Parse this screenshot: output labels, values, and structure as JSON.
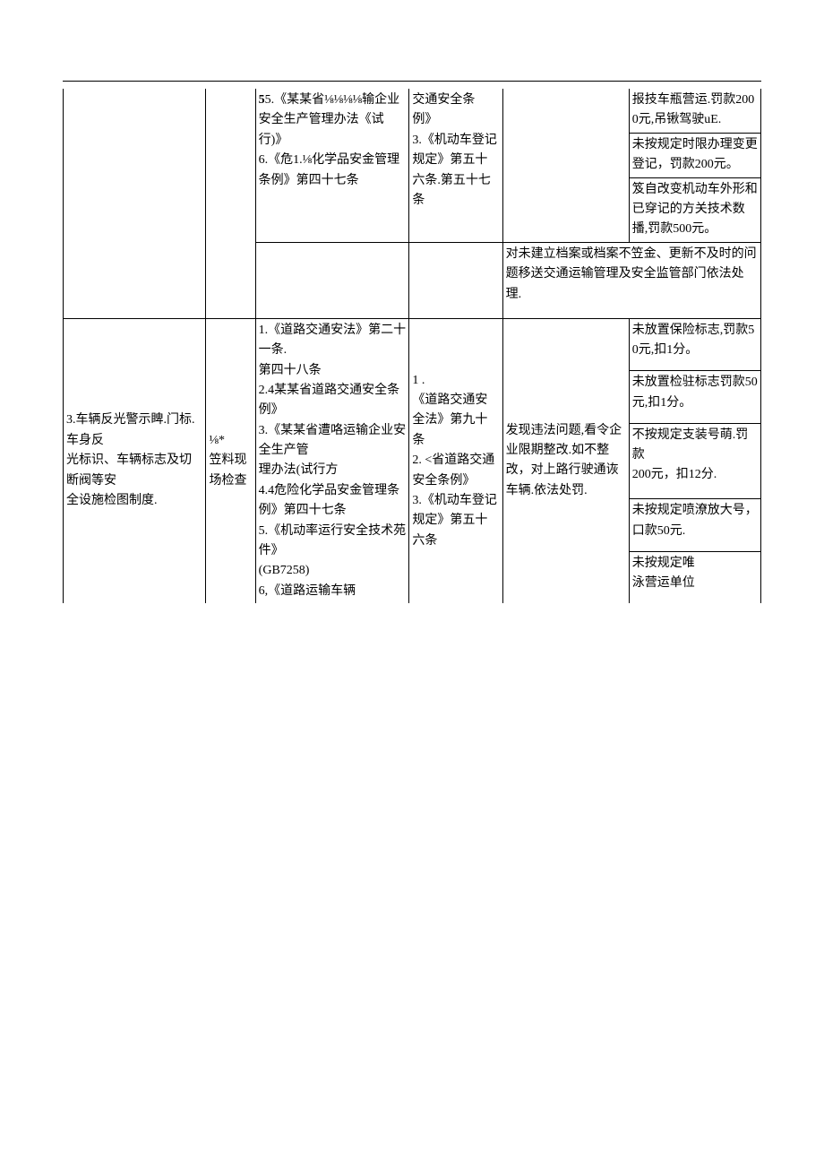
{
  "row1": {
    "c3": "5.《某某省⅛⅛⅛⅛输企业安全生产管理办法《试行)》\n6.《危1.⅛化学品安金管理条例》第四十七条",
    "c4": "交通安全条例》\n3.《机动车登记规定》第五十六条.第五十七条",
    "c6a": "报技车瓶营运.罚款2000元,吊锹驾驶uE.",
    "c6b": "未按规定时限办理变更登记，罚款200元。",
    "c6c": "笈自改变机动车外形和已穿记的方关技术数播,罚款500元。"
  },
  "row2": {
    "merged56": "对未建立档案或档案不笠金、更新不及时的问题移送交通运输管理及安全监管部门依法处理."
  },
  "row3": {
    "c1": "3.车辆反光警示睥.门标.车身反\n光标识、车辆标志及切断阀等安\n全设施检图制度.",
    "c2": "⅛*\n笠料现场检查",
    "c3": "1.《道路交通安法》第二十一条.\n第四十八条\n2.4某某省道路交通安全条例》\n3.《某某省遭咯运输企业安全生产管\n理办法(试行方\n4.4危险化学品安金管理条例》第四十七条\n5.《机动率运行安全技术苑件》\n(GB7258)\n6,《道路运输车辆",
    "c4": "1       .\n《道路交通安全法》第九十条\n2. <省道路交通安全条例》\n3.《机动车登记规定》第五十六条",
    "c5": "发现违法问题,看令企业限期整改.如不整改，对上路行驶通诙车辆.依法处罚.",
    "c6a": "未放置保险标志,罚款50元,扣1分。",
    "c6b": "未放置检驻标志罚款50元,扣1分。",
    "c6c": "不按规定支装号萌.罚款\n200元，扣12分.",
    "c6d": "未按规定喷潦放大号，口款50元.",
    "c6e": "未按规定唯\n泳营运单位"
  }
}
